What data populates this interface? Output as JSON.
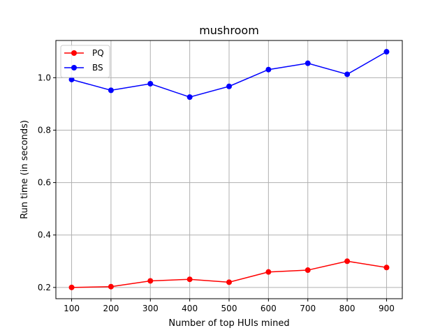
{
  "chart_data": {
    "type": "line",
    "title": "mushroom",
    "xlabel": "Number of top HUIs mined",
    "ylabel": "Run time (in seconds)",
    "x": [
      100,
      200,
      300,
      400,
      500,
      600,
      700,
      800,
      900
    ],
    "xlim": [
      60,
      940
    ],
    "ylim": [
      0.157,
      1.142
    ],
    "xticks": [
      100,
      200,
      300,
      400,
      500,
      600,
      700,
      800,
      900
    ],
    "yticks": [
      0.2,
      0.4,
      0.6,
      0.8,
      1.0
    ],
    "ytick_labels": [
      "0.2",
      "0.4",
      "0.6",
      "0.8",
      "1.0"
    ],
    "grid": true,
    "legend_position": "top-left",
    "series": [
      {
        "name": "PQ",
        "color": "#ff0000",
        "marker": "circle",
        "values": [
          0.2,
          0.203,
          0.225,
          0.231,
          0.22,
          0.259,
          0.266,
          0.3,
          0.276
        ]
      },
      {
        "name": "BS",
        "color": "#0000ff",
        "marker": "circle",
        "values": [
          0.993,
          0.952,
          0.977,
          0.926,
          0.967,
          1.031,
          1.055,
          1.013,
          1.099
        ]
      }
    ]
  }
}
